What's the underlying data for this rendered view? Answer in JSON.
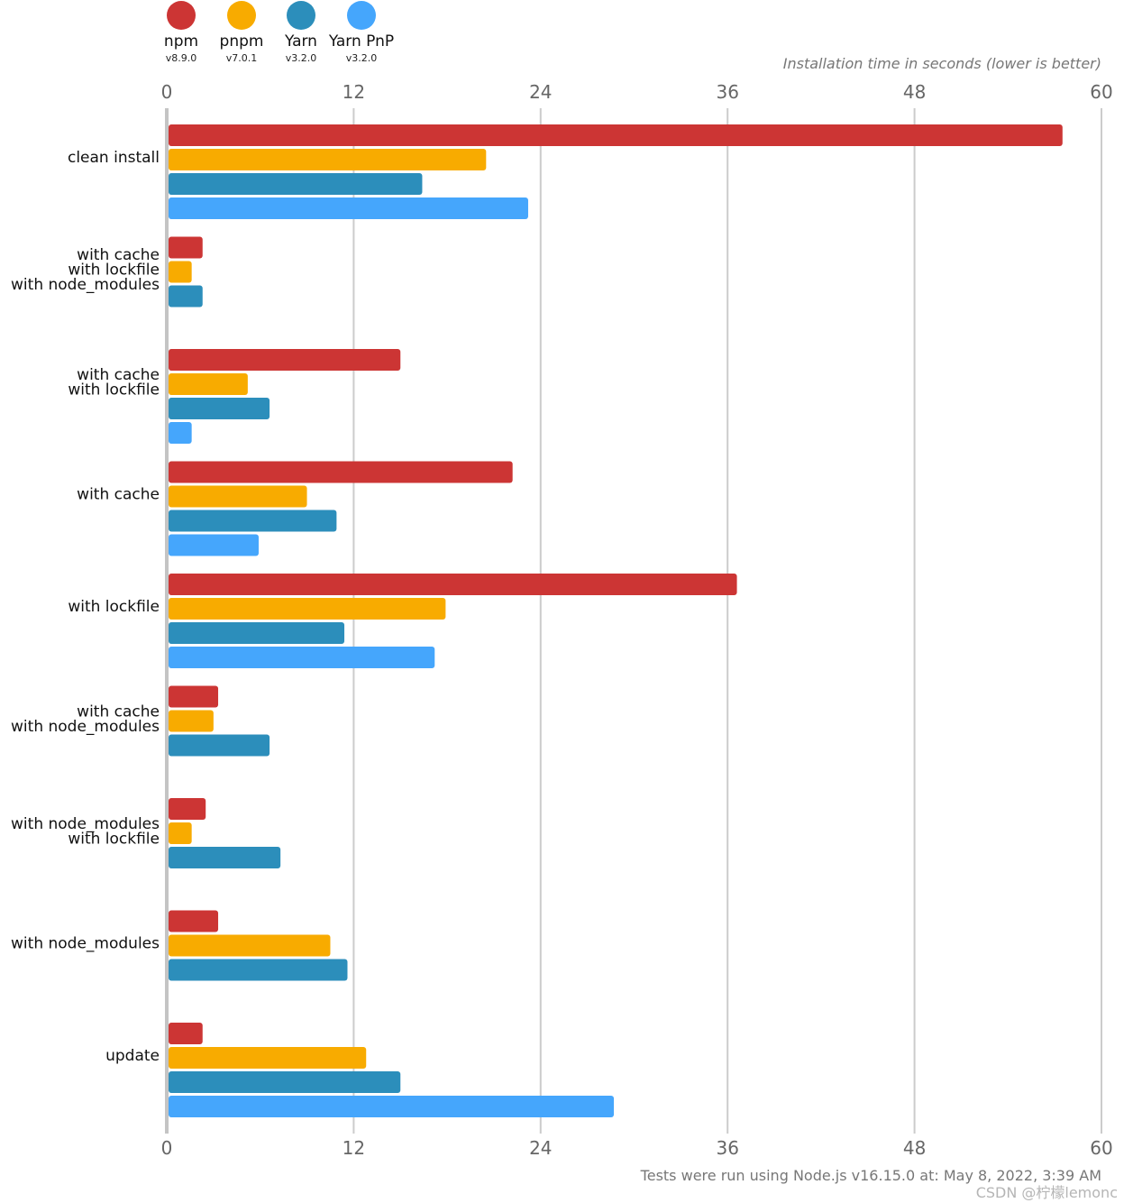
{
  "chart_data": {
    "type": "bar",
    "orientation": "horizontal",
    "xlabel": "Installation time in seconds (lower is better)",
    "xlim": [
      0,
      60
    ],
    "xticks": [
      0,
      12,
      24,
      36,
      48,
      60
    ],
    "grid": true,
    "legend_position": "top-left",
    "categories": [
      "clean install",
      "with cache\nwith lockfile\nwith node_modules",
      "with cache\nwith lockfile",
      "with cache",
      "with lockfile",
      "with cache\nwith node_modules",
      "with node_modules\nwith lockfile",
      "with node_modules",
      "update"
    ],
    "series": [
      {
        "name": "npm",
        "version": "v8.9.0",
        "color": "#cc3534",
        "values": [
          57.5,
          2.3,
          15.0,
          22.2,
          36.6,
          3.3,
          2.5,
          3.3,
          2.3
        ]
      },
      {
        "name": "pnpm",
        "version": "v7.0.1",
        "color": "#f8ab00",
        "values": [
          20.5,
          1.6,
          5.2,
          9.0,
          17.9,
          3.0,
          1.6,
          10.5,
          12.8
        ]
      },
      {
        "name": "Yarn",
        "version": "v3.2.0",
        "color": "#2c8ebb",
        "values": [
          16.4,
          2.3,
          6.6,
          10.9,
          11.4,
          6.6,
          7.3,
          11.6,
          15.0
        ]
      },
      {
        "name": "Yarn PnP",
        "version": "v3.2.0",
        "color": "#45a6fc",
        "values": [
          23.2,
          null,
          1.6,
          5.9,
          17.2,
          null,
          null,
          null,
          28.7
        ]
      }
    ],
    "footnote": "Tests were run using Node.js v16.15.0 at: May 8, 2022, 3:39 AM"
  },
  "watermark": "CSDN @柠檬lemonc"
}
